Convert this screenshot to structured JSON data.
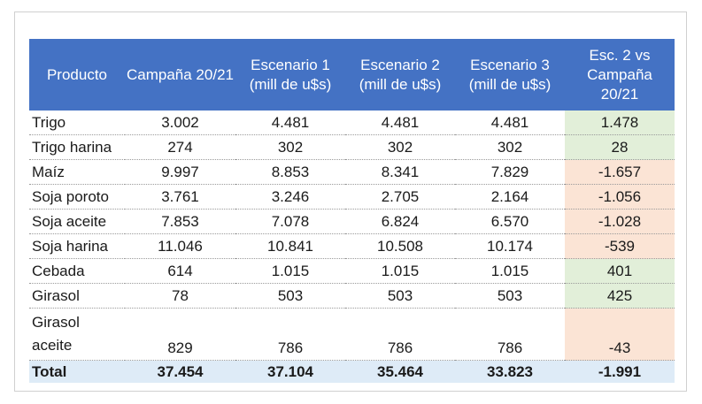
{
  "table": {
    "headers": [
      "Producto",
      "Campaña 20/21",
      "Escenario 1 (mill de u$s)",
      "Escenario 2 (mill de u$s)",
      "Escenario 3 (mill de u$s)",
      "Esc. 2 vs Campaña 20/21"
    ],
    "rows": [
      {
        "producto": "Trigo",
        "campana": "3.002",
        "esc1": "4.481",
        "esc2": "4.481",
        "esc3": "4.481",
        "diff": "1.478"
      },
      {
        "producto": "Trigo harina",
        "campana": "274",
        "esc1": "302",
        "esc2": "302",
        "esc3": "302",
        "diff": "28"
      },
      {
        "producto": "Maíz",
        "campana": "9.997",
        "esc1": "8.853",
        "esc2": "8.341",
        "esc3": "7.829",
        "diff": "-1.657"
      },
      {
        "producto": "Soja poroto",
        "campana": "3.761",
        "esc1": "3.246",
        "esc2": "2.705",
        "esc3": "2.164",
        "diff": "-1.056"
      },
      {
        "producto": "Soja aceite",
        "campana": "7.853",
        "esc1": "7.078",
        "esc2": "6.824",
        "esc3": "6.570",
        "diff": "-1.028"
      },
      {
        "producto": "Soja harina",
        "campana": "11.046",
        "esc1": "10.841",
        "esc2": "10.508",
        "esc3": "10.174",
        "diff": "-539"
      },
      {
        "producto": "Cebada",
        "campana": "614",
        "esc1": "1.015",
        "esc2": "1.015",
        "esc3": "1.015",
        "diff": "401"
      },
      {
        "producto": "Girasol",
        "campana": "78",
        "esc1": "503",
        "esc2": "503",
        "esc3": "503",
        "diff": "425"
      },
      {
        "producto": "Girasol aceite",
        "campana": "829",
        "esc1": "786",
        "esc2": "786",
        "esc3": "786",
        "diff": "-43"
      }
    ],
    "total": {
      "producto": "Total",
      "campana": "37.454",
      "esc1": "37.104",
      "esc2": "35.464",
      "esc3": "33.823",
      "diff": "-1.991"
    }
  },
  "colors": {
    "header_bg": "#4472c4",
    "positive_bg": "#e2efd9",
    "negative_bg": "#fbe4d5",
    "total_bg": "#deebf7"
  }
}
